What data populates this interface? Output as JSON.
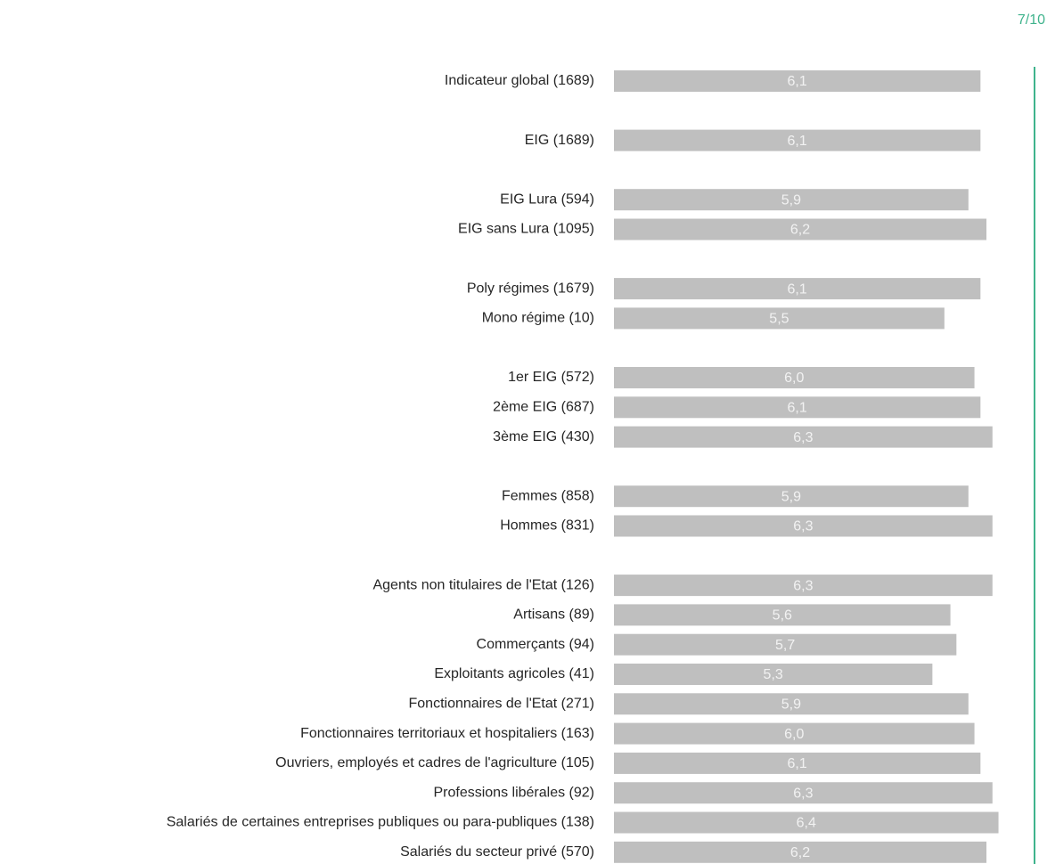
{
  "chart_data": {
    "type": "bar",
    "orientation": "horizontal",
    "categories": [
      "Indicateur global (1689)",
      null,
      "EIG (1689)",
      null,
      "EIG Lura (594)",
      "EIG sans Lura (1095)",
      null,
      "Poly régimes (1679)",
      "Mono régime (10)",
      null,
      "1er EIG (572)",
      "2ème EIG (687)",
      "3ème EIG (430)",
      null,
      "Femmes (858)",
      "Hommes (831)",
      null,
      "Agents non titulaires de l'Etat (126)",
      "Artisans (89)",
      "Commerçants (94)",
      "Exploitants agricoles (41)",
      "Fonctionnaires de l'Etat (271)",
      "Fonctionnaires territoriaux et hospitaliers (163)",
      "Ouvriers, employés et cadres de l'agriculture (105)",
      "Professions libérales (92)",
      "Salariés de certaines entreprises publiques ou para-publiques (138)",
      "Salariés du secteur privé (570)"
    ],
    "values": [
      6.1,
      null,
      6.1,
      null,
      5.9,
      6.2,
      null,
      6.1,
      5.5,
      null,
      6.0,
      6.1,
      6.3,
      null,
      5.9,
      6.3,
      null,
      6.3,
      5.6,
      5.7,
      5.3,
      5.9,
      6.0,
      6.1,
      6.3,
      6.4,
      6.2
    ],
    "value_labels": [
      "6,1",
      null,
      "6,1",
      null,
      "5,9",
      "6,2",
      null,
      "6,1",
      "5,5",
      null,
      "6,0",
      "6,1",
      "6,3",
      null,
      "5,9",
      "6,3",
      null,
      "6,3",
      "5,6",
      "5,7",
      "5,3",
      "5,9",
      "6,0",
      "6,1",
      "6,3",
      "6,4",
      "6,2"
    ],
    "color": "#bfbfbf",
    "xlim": [
      0,
      7
    ],
    "xticks": [
      {
        "value": 7,
        "label": "7/10"
      }
    ],
    "reference_color": "#3fb38c"
  }
}
